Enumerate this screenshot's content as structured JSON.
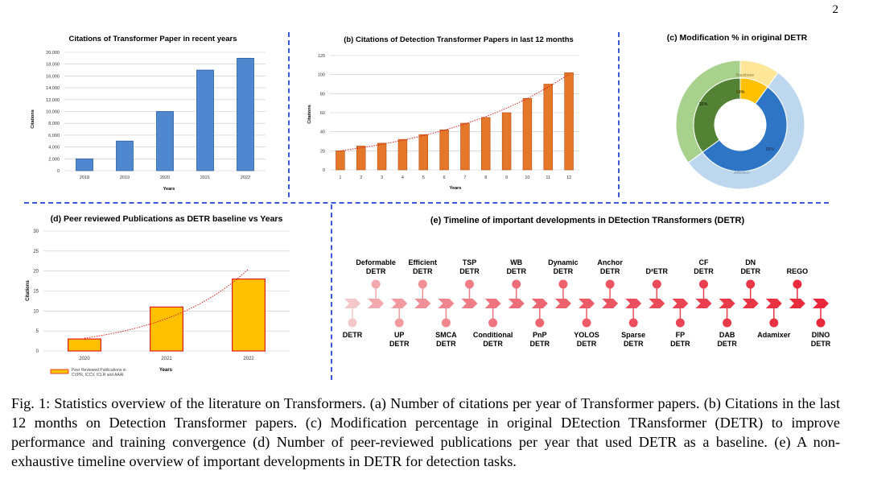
{
  "page_number": "2",
  "colors": {
    "blue_bar": "#4f88cf",
    "orange_bar": "#e4772a",
    "yellow_bar": "#ffc000",
    "red_outline": "#e02020",
    "divider": "#3c5ad8",
    "dot_faded": "#f4b8b8",
    "dot_strong": "#e8283a"
  },
  "chart_data": [
    {
      "id": "a",
      "type": "bar",
      "title": "Citations of Transformer Paper in recent years",
      "xlabel": "Years",
      "ylabel": "Citations",
      "categories": [
        "2018",
        "2019",
        "2020",
        "2021",
        "2022"
      ],
      "values": [
        2000,
        5000,
        10000,
        17000,
        19000
      ],
      "yticks": [
        "0",
        "2,000",
        "4,000",
        "6,000",
        "8,000",
        "10,000",
        "12,000",
        "14,000",
        "16,000",
        "18,000",
        "20,000"
      ],
      "ylim": [
        0,
        20000
      ]
    },
    {
      "id": "b",
      "type": "bar",
      "title": "(b) Citations of Detection Transformer Papers in last 12 months",
      "xlabel": "Years",
      "ylabel": "Citations",
      "categories": [
        "1",
        "2",
        "3",
        "4",
        "5",
        "6",
        "7",
        "8",
        "9",
        "10",
        "11",
        "12"
      ],
      "values": [
        20,
        25,
        28,
        32,
        37,
        42,
        49,
        55,
        60,
        75,
        90,
        102
      ],
      "yticks": [
        "0",
        "20",
        "40",
        "60",
        "80",
        "100",
        "120"
      ],
      "ylim": [
        0,
        120
      ],
      "trendline": "exponential"
    },
    {
      "id": "c",
      "type": "pie",
      "title": "(c) Modification % in original DETR",
      "inner": [
        {
          "label": "10%",
          "value": 10,
          "color": "#ffc000"
        },
        {
          "label": "55%",
          "value": 55,
          "color": "#2e75c6"
        },
        {
          "label": "35%",
          "value": 35,
          "color": "#548235"
        }
      ],
      "outer": [
        {
          "label": "Backbone",
          "value": 10,
          "color": "#ffe699"
        },
        {
          "label": "Attention",
          "value": 55,
          "color": "#bdd7ee"
        },
        {
          "label": "",
          "value": 35,
          "color": "#a9d18e"
        }
      ]
    },
    {
      "id": "d",
      "type": "bar",
      "title": "(d) Peer reviewed Publications as DETR baseline vs Years",
      "xlabel": "Years",
      "ylabel": "Citations",
      "categories": [
        "2020",
        "2021",
        "2022"
      ],
      "values": [
        3,
        11,
        18
      ],
      "yticks": [
        "0",
        "5",
        "10",
        "15",
        "20",
        "25",
        "30"
      ],
      "ylim": [
        0,
        30
      ],
      "legend": "Peer Reviewed Publications in CVPR, ICCV, ICLR and AAAI",
      "trendline": "exponential"
    }
  ],
  "timeline": {
    "title": "(e) Timeline of important developments in DEtection TRansformers (DETR)",
    "top_labels": [
      {
        "line1": "Deformable",
        "line2": "DETR"
      },
      {
        "line1": "Efficient",
        "line2": "DETR"
      },
      {
        "line1": "TSP",
        "line2": "DETR"
      },
      {
        "line1": "WB",
        "line2": "DETR"
      },
      {
        "line1": "Dynamic",
        "line2": "DETR"
      },
      {
        "line1": "Anchor",
        "line2": "DETR"
      },
      {
        "line1": "D²ETR",
        "line2": ""
      },
      {
        "line1": "CF",
        "line2": "DETR"
      },
      {
        "line1": "DN",
        "line2": "DETR"
      },
      {
        "line1": "REGO",
        "line2": ""
      }
    ],
    "bottom_labels": [
      {
        "line1": "DETR",
        "line2": ""
      },
      {
        "line1": "UP",
        "line2": "DETR"
      },
      {
        "line1": "SMCA",
        "line2": "DETR"
      },
      {
        "line1": "Conditional",
        "line2": "DETR"
      },
      {
        "line1": "PnP",
        "line2": "DETR"
      },
      {
        "line1": "YOLOS",
        "line2": "DETR"
      },
      {
        "line1": "Sparse",
        "line2": "DETR"
      },
      {
        "line1": "FP",
        "line2": "DETR"
      },
      {
        "line1": "DAB",
        "line2": "DETR"
      },
      {
        "line1": "Adamixer",
        "line2": ""
      },
      {
        "line1": "DINO",
        "line2": "DETR"
      }
    ]
  },
  "caption": {
    "label": "Fig. 1:",
    "text": "Statistics overview of the literature on Transformers. (a) Number of citations per year of Transformer papers. (b) Citations in the last 12 months on Detection Transformer papers. (c) Modification percentage in original DEtection TRansformer (DETR) to improve performance and training convergence (d) Number of peer-reviewed publications per year that used DETR as a baseline. (e) A non-exhaustive timeline overview of important developments in DETR for detection tasks."
  }
}
